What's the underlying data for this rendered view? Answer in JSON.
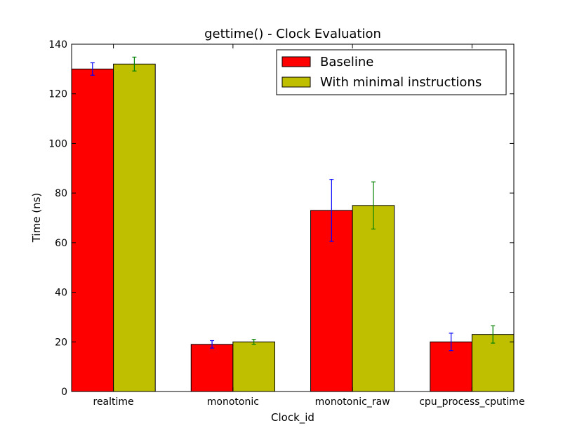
{
  "chart_data": {
    "type": "bar",
    "title": "gettime() - Clock Evaluation",
    "xlabel": "Clock_id",
    "ylabel": "Time (ns)",
    "ylim": [
      0,
      140
    ],
    "yticks": [
      0,
      20,
      40,
      60,
      80,
      100,
      120,
      140
    ],
    "grid": false,
    "legend_position": "top-right",
    "categories": [
      "realtime",
      "monotonic",
      "monotonic_raw",
      "cpu_process_cputime"
    ],
    "series": [
      {
        "name": "Baseline",
        "color": "#ff0000",
        "error_color": "#0000ff",
        "values": [
          130,
          19,
          73,
          20
        ],
        "errors": [
          2.5,
          1.5,
          12.5,
          3.5
        ]
      },
      {
        "name": "With minimal instructions",
        "color": "#bfbf00",
        "error_color": "#008000",
        "values": [
          132,
          20,
          75,
          23
        ],
        "errors": [
          2.8,
          1.0,
          9.5,
          3.5
        ]
      }
    ]
  }
}
